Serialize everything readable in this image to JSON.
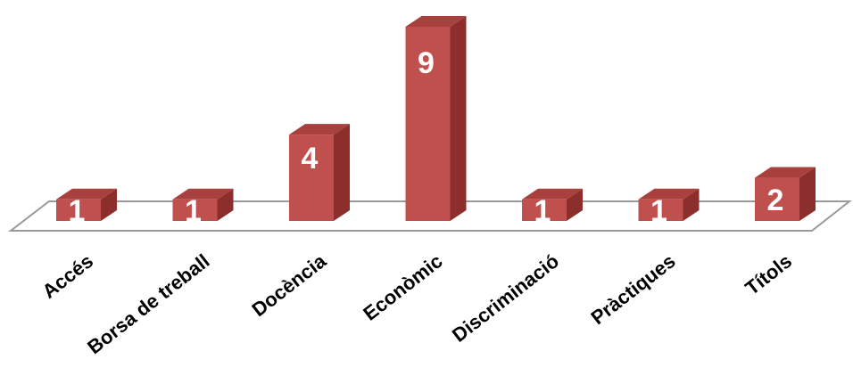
{
  "chart_data": {
    "type": "bar",
    "categories": [
      "Accés",
      "Borsa de treball",
      "Docència",
      "Econòmic",
      "Discriminació",
      "Pràctiques",
      "Títols"
    ],
    "values": [
      1,
      1,
      4,
      9,
      1,
      1,
      2
    ],
    "title": "",
    "xlabel": "",
    "ylabel": "",
    "ylim": [
      0,
      9
    ],
    "grid": false,
    "legend": "none",
    "data_labels": true,
    "style": "3d-column",
    "colors": {
      "bar_front": "#C0504D",
      "bar_side": "#8C2F2C",
      "bar_top": "#A8403D",
      "floor_stroke": "#9a9a9a",
      "label_text": "#ffffff",
      "category_text": "#000000"
    }
  }
}
